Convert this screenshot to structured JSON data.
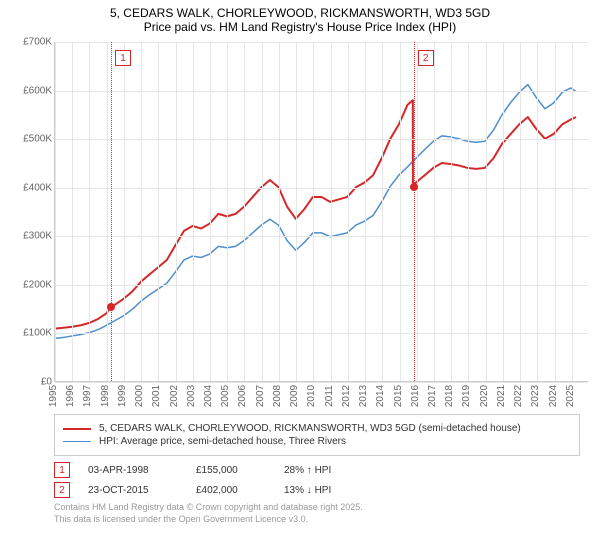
{
  "title_line1": "5, CEDARS WALK, CHORLEYWOOD, RICKMANSWORTH, WD3 5GD",
  "title_line2": "Price paid vs. HM Land Registry's House Price Index (HPI)",
  "chart": {
    "type": "line",
    "background_color": "#ffffff",
    "grid_color": "#e6e6e6",
    "axis_color": "#cccccc",
    "xlim": [
      1995,
      2026
    ],
    "ylim": [
      0,
      700000
    ],
    "ytick_step": 100000,
    "yticks": [
      "£0",
      "£100K",
      "£200K",
      "£300K",
      "£400K",
      "£500K",
      "£600K",
      "£700K"
    ],
    "xticks": [
      1995,
      1996,
      1997,
      1998,
      1999,
      2000,
      2001,
      2002,
      2003,
      2004,
      2005,
      2006,
      2007,
      2008,
      2009,
      2010,
      2011,
      2012,
      2013,
      2014,
      2015,
      2016,
      2017,
      2018,
      2019,
      2020,
      2021,
      2022,
      2023,
      2024,
      2025
    ],
    "label_fontsize": 10,
    "label_color": "#666666",
    "series": [
      {
        "id": "address",
        "label": "5, CEDARS WALK, CHORLEYWOOD, RICKMANSWORTH, WD3 5GD (semi-detached house)",
        "color": "#d62728",
        "line_width": 2,
        "data": [
          [
            1995.0,
            108000
          ],
          [
            1995.5,
            110000
          ],
          [
            1996.0,
            112000
          ],
          [
            1996.5,
            115000
          ],
          [
            1997.0,
            120000
          ],
          [
            1997.5,
            128000
          ],
          [
            1998.0,
            140000
          ],
          [
            1998.25,
            155000
          ],
          [
            1998.5,
            158000
          ],
          [
            1999.0,
            170000
          ],
          [
            1999.5,
            185000
          ],
          [
            2000.0,
            205000
          ],
          [
            2000.5,
            220000
          ],
          [
            2001.0,
            235000
          ],
          [
            2001.5,
            250000
          ],
          [
            2002.0,
            280000
          ],
          [
            2002.5,
            310000
          ],
          [
            2003.0,
            320000
          ],
          [
            2003.5,
            315000
          ],
          [
            2004.0,
            325000
          ],
          [
            2004.5,
            345000
          ],
          [
            2005.0,
            340000
          ],
          [
            2005.5,
            345000
          ],
          [
            2006.0,
            360000
          ],
          [
            2006.5,
            380000
          ],
          [
            2007.0,
            400000
          ],
          [
            2007.5,
            415000
          ],
          [
            2008.0,
            400000
          ],
          [
            2008.5,
            360000
          ],
          [
            2009.0,
            335000
          ],
          [
            2009.5,
            355000
          ],
          [
            2010.0,
            380000
          ],
          [
            2010.5,
            380000
          ],
          [
            2011.0,
            370000
          ],
          [
            2011.5,
            375000
          ],
          [
            2012.0,
            380000
          ],
          [
            2012.5,
            400000
          ],
          [
            2013.0,
            410000
          ],
          [
            2013.5,
            425000
          ],
          [
            2014.0,
            460000
          ],
          [
            2014.5,
            500000
          ],
          [
            2015.0,
            530000
          ],
          [
            2015.5,
            570000
          ],
          [
            2015.81,
            580000
          ],
          [
            2015.82,
            402000
          ],
          [
            2016.0,
            410000
          ],
          [
            2016.5,
            425000
          ],
          [
            2017.0,
            440000
          ],
          [
            2017.5,
            450000
          ],
          [
            2018.0,
            448000
          ],
          [
            2018.5,
            445000
          ],
          [
            2019.0,
            440000
          ],
          [
            2019.5,
            438000
          ],
          [
            2020.0,
            440000
          ],
          [
            2020.5,
            460000
          ],
          [
            2021.0,
            490000
          ],
          [
            2021.5,
            510000
          ],
          [
            2022.0,
            530000
          ],
          [
            2022.5,
            545000
          ],
          [
            2023.0,
            520000
          ],
          [
            2023.5,
            500000
          ],
          [
            2024.0,
            510000
          ],
          [
            2024.5,
            530000
          ],
          [
            2025.0,
            540000
          ],
          [
            2025.3,
            545000
          ]
        ]
      },
      {
        "id": "hpi",
        "label": "HPI: Average price, semi-detached house, Three Rivers",
        "color": "#4e8ecb",
        "line_width": 1.5,
        "data": [
          [
            1995.0,
            88000
          ],
          [
            1995.5,
            90000
          ],
          [
            1996.0,
            93000
          ],
          [
            1996.5,
            96000
          ],
          [
            1997.0,
            100000
          ],
          [
            1997.5,
            106000
          ],
          [
            1998.0,
            115000
          ],
          [
            1998.5,
            125000
          ],
          [
            1999.0,
            135000
          ],
          [
            1999.5,
            148000
          ],
          [
            2000.0,
            165000
          ],
          [
            2000.5,
            178000
          ],
          [
            2001.0,
            190000
          ],
          [
            2001.5,
            202000
          ],
          [
            2002.0,
            225000
          ],
          [
            2002.5,
            250000
          ],
          [
            2003.0,
            258000
          ],
          [
            2003.5,
            255000
          ],
          [
            2004.0,
            262000
          ],
          [
            2004.5,
            278000
          ],
          [
            2005.0,
            275000
          ],
          [
            2005.5,
            278000
          ],
          [
            2006.0,
            290000
          ],
          [
            2006.5,
            306000
          ],
          [
            2007.0,
            322000
          ],
          [
            2007.5,
            334000
          ],
          [
            2008.0,
            322000
          ],
          [
            2008.5,
            290000
          ],
          [
            2009.0,
            270000
          ],
          [
            2009.5,
            286000
          ],
          [
            2010.0,
            306000
          ],
          [
            2010.5,
            306000
          ],
          [
            2011.0,
            298000
          ],
          [
            2011.5,
            302000
          ],
          [
            2012.0,
            306000
          ],
          [
            2012.5,
            322000
          ],
          [
            2013.0,
            330000
          ],
          [
            2013.5,
            342000
          ],
          [
            2014.0,
            370000
          ],
          [
            2014.5,
            402000
          ],
          [
            2015.0,
            425000
          ],
          [
            2015.5,
            442000
          ],
          [
            2016.0,
            460000
          ],
          [
            2016.5,
            478000
          ],
          [
            2017.0,
            495000
          ],
          [
            2017.5,
            506000
          ],
          [
            2018.0,
            504000
          ],
          [
            2018.5,
            500000
          ],
          [
            2019.0,
            495000
          ],
          [
            2019.5,
            493000
          ],
          [
            2020.0,
            495000
          ],
          [
            2020.5,
            518000
          ],
          [
            2021.0,
            550000
          ],
          [
            2021.5,
            575000
          ],
          [
            2022.0,
            596000
          ],
          [
            2022.5,
            612000
          ],
          [
            2023.0,
            585000
          ],
          [
            2023.5,
            562000
          ],
          [
            2024.0,
            574000
          ],
          [
            2024.5,
            596000
          ],
          [
            2025.0,
            605000
          ],
          [
            2025.3,
            598000
          ]
        ]
      }
    ],
    "sale_markers": [
      {
        "n": "1",
        "x": 1998.25,
        "y": 155000,
        "color": "#d62728"
      },
      {
        "n": "2",
        "x": 2015.82,
        "y": 402000,
        "color": "#d62728"
      }
    ]
  },
  "legend": {
    "border_color": "#cccccc",
    "items": [
      {
        "color": "#d62728",
        "width": 2,
        "label": "5, CEDARS WALK, CHORLEYWOOD, RICKMANSWORTH, WD3 5GD (semi-detached house)"
      },
      {
        "color": "#4e8ecb",
        "width": 1.5,
        "label": "HPI: Average price, semi-detached house, Three Rivers"
      }
    ]
  },
  "sales": [
    {
      "n": "1",
      "color": "#d62728",
      "date": "03-APR-1998",
      "price": "£155,000",
      "delta": "28% ↑ HPI"
    },
    {
      "n": "2",
      "color": "#d62728",
      "date": "23-OCT-2015",
      "price": "£402,000",
      "delta": "13% ↓ HPI"
    }
  ],
  "footer_line1": "Contains HM Land Registry data © Crown copyright and database right 2025.",
  "footer_line2": "This data is licensed under the Open Government Licence v3.0."
}
